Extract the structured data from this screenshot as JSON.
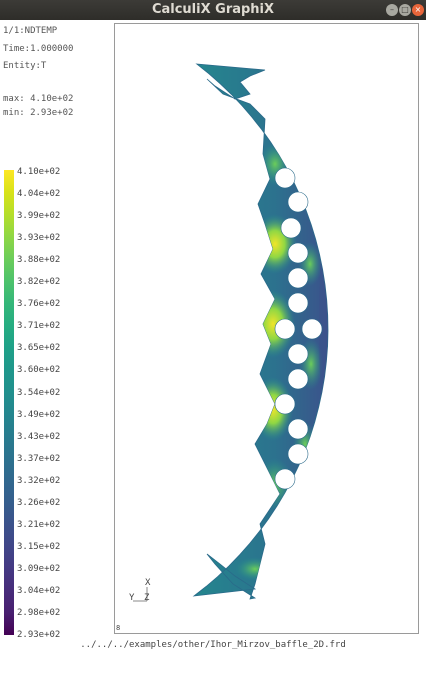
{
  "window": {
    "title": "CalculiX GraphiX",
    "controls": {
      "minimize": "–",
      "maximize": "□",
      "close": "×"
    }
  },
  "info": {
    "step": "1/1:NDTEMP",
    "time": "Time:1.000000",
    "entity": "Entity:T",
    "max": "max: 4.10e+02",
    "min": "min: 2.93e+02"
  },
  "legend": {
    "labels": [
      "4.10e+02",
      "4.04e+02",
      "3.99e+02",
      "3.93e+02",
      "3.88e+02",
      "3.82e+02",
      "3.76e+02",
      "3.71e+02",
      "3.65e+02",
      "3.60e+02",
      "3.54e+02",
      "3.49e+02",
      "3.43e+02",
      "3.37e+02",
      "3.32e+02",
      "3.26e+02",
      "3.21e+02",
      "3.15e+02",
      "3.09e+02",
      "3.04e+02",
      "2.98e+02",
      "2.93e+02"
    ],
    "colors": [
      "#fde725",
      "#d8e219",
      "#b5de2b",
      "#8fd744",
      "#6ccd5a",
      "#4ec36b",
      "#35b779",
      "#26ad81",
      "#1fa188",
      "#1f978b",
      "#21908d",
      "#24868e",
      "#287c8e",
      "#2c728e",
      "#31688e",
      "#355e8d",
      "#3b528b",
      "#404688",
      "#443983",
      "#472c7a",
      "#481f70",
      "#440154"
    ]
  },
  "axes": {
    "x": "X",
    "y": "Y",
    "z": "Z"
  },
  "canvas_marker": "8",
  "file": {
    "path": "../../../examples/other/Ihor_Mirzov_baffle_2D.frd"
  }
}
